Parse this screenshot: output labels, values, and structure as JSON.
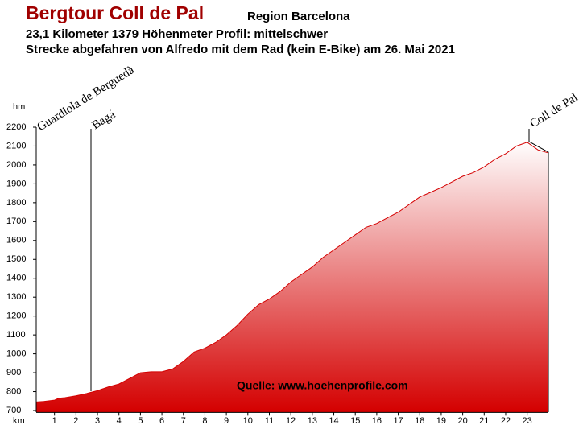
{
  "header": {
    "title": "Bergtour Coll de Pal",
    "region": "Region Barcelona",
    "line1": "23,1 Kilometer  1379 Höhenmeter  Profil: mittelschwer",
    "line2": "Strecke abgefahren von Alfredo mit dem Rad (kein E-Bike) am 26. Mai 2021"
  },
  "chart_data": {
    "type": "area",
    "ylabel": "hm",
    "xlabel": "km",
    "annotations": [
      "Guardiola de Berguedà",
      "Bagá",
      "Coll de Pal"
    ],
    "source": "Quelle: www.hoehenprofile.com",
    "color": "#d40000",
    "x": [
      0.15,
      0.5,
      1,
      1.2,
      1.5,
      2,
      2.5,
      2.65,
      3,
      3.5,
      4,
      4.5,
      5,
      5.5,
      6,
      6.5,
      7,
      7.5,
      8,
      8.5,
      9,
      9.5,
      10,
      10.5,
      11,
      11.5,
      12,
      12.5,
      13,
      13.5,
      14,
      14.5,
      15,
      15.5,
      16,
      16.5,
      17,
      17.5,
      18,
      18.5,
      19,
      19.5,
      20,
      20.5,
      21,
      21.5,
      22,
      22.5,
      23,
      23.5,
      23.95
    ],
    "values": [
      745,
      748,
      755,
      765,
      768,
      778,
      790,
      795,
      805,
      825,
      840,
      870,
      900,
      905,
      905,
      920,
      960,
      1010,
      1030,
      1060,
      1100,
      1150,
      1210,
      1260,
      1290,
      1330,
      1380,
      1420,
      1460,
      1510,
      1550,
      1590,
      1630,
      1670,
      1690,
      1720,
      1750,
      1790,
      1830,
      1855,
      1880,
      1910,
      1940,
      1960,
      1990,
      2030,
      2060,
      2100,
      2120,
      2080,
      2065
    ],
    "xlim": [
      0.15,
      23.95
    ],
    "ylim": [
      690,
      2230
    ],
    "xticks": [
      1,
      2,
      3,
      4,
      5,
      6,
      7,
      8,
      9,
      10,
      11,
      12,
      13,
      14,
      15,
      16,
      17,
      18,
      19,
      20,
      21,
      22,
      23
    ],
    "yticks": [
      700,
      800,
      900,
      1000,
      1100,
      1200,
      1300,
      1400,
      1500,
      1600,
      1700,
      1800,
      1900,
      2000,
      2100,
      2200
    ]
  }
}
